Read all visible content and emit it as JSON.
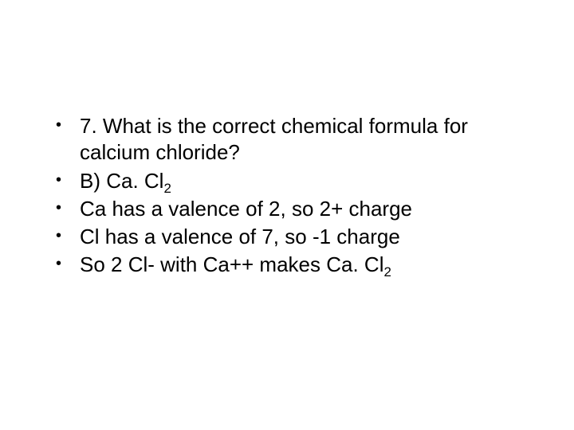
{
  "slide": {
    "background_color": "#ffffff",
    "text_color": "#000000",
    "font_size": 26,
    "font_family": "Arial",
    "bullets": [
      {
        "text_parts": [
          "7. What is the correct chemical formula for calcium chloride?"
        ],
        "has_subscript": false
      },
      {
        "text_parts": [
          "B) Ca. Cl",
          "2"
        ],
        "has_subscript": true
      },
      {
        "text_parts": [
          "Ca has a valence of 2, so 2+ charge"
        ],
        "has_subscript": false
      },
      {
        "text_parts": [
          "Cl has a valence of 7, so -1 charge"
        ],
        "has_subscript": false
      },
      {
        "text_parts": [
          "So 2 Cl- with Ca++ makes Ca. Cl",
          "2"
        ],
        "has_subscript": true
      }
    ],
    "bullet_char": "•"
  }
}
